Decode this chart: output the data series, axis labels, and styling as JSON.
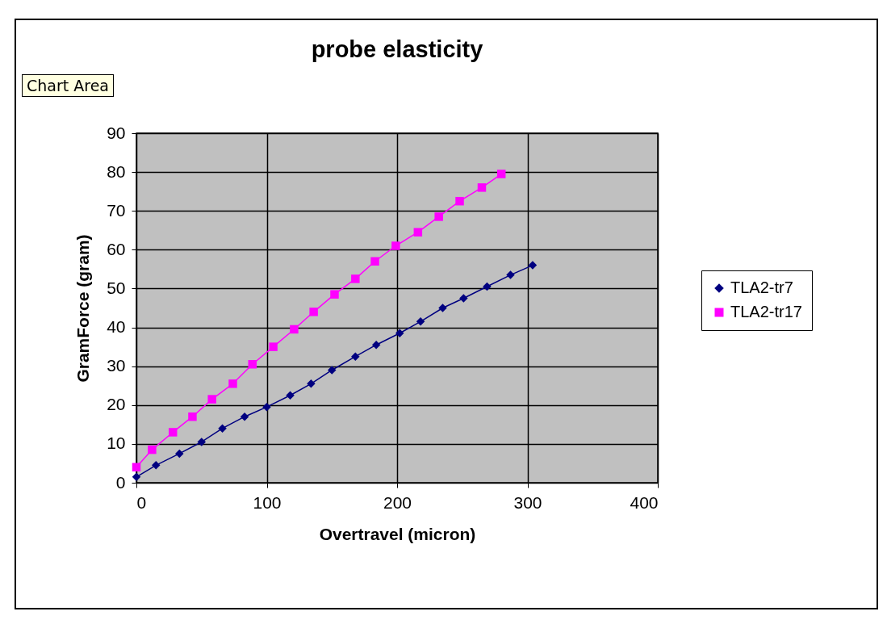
{
  "chart_data": {
    "type": "line",
    "title": "probe elasticity",
    "xlabel": "Overtravel (micron)",
    "ylabel": "GramForce (gram)",
    "annotations": [
      "Chart Area"
    ],
    "xlim": [
      0,
      400
    ],
    "xticks": [
      0,
      100,
      200,
      300,
      400
    ],
    "ylim": [
      0,
      90
    ],
    "yticks": [
      0,
      10,
      20,
      30,
      40,
      50,
      60,
      70,
      80,
      90
    ],
    "grid": true,
    "legend": "right",
    "series": [
      {
        "name": "TLA2-tr7",
        "color": "#000080",
        "marker": "diamond",
        "x": [
          0,
          15,
          33,
          50,
          66,
          83,
          100,
          118,
          134,
          150,
          168,
          184,
          202,
          218,
          235,
          251,
          269,
          287,
          304
        ],
        "values": [
          1.5,
          4.5,
          7.5,
          10.5,
          14,
          17,
          19.5,
          22.5,
          25.5,
          29,
          32.5,
          35.5,
          38.5,
          41.5,
          45,
          47.5,
          50.5,
          53.5,
          56
        ]
      },
      {
        "name": "TLA2-tr17",
        "color": "#ff00ff",
        "marker": "square",
        "x": [
          0,
          12,
          28,
          43,
          58,
          74,
          89,
          105,
          121,
          136,
          152,
          168,
          183,
          199,
          216,
          232,
          248,
          265,
          280
        ],
        "values": [
          4,
          8.5,
          13,
          17,
          21.5,
          25.5,
          30.5,
          35,
          39.5,
          44,
          48.5,
          52.5,
          57,
          61,
          64.5,
          68.5,
          72.5,
          76,
          79.5
        ]
      }
    ]
  }
}
